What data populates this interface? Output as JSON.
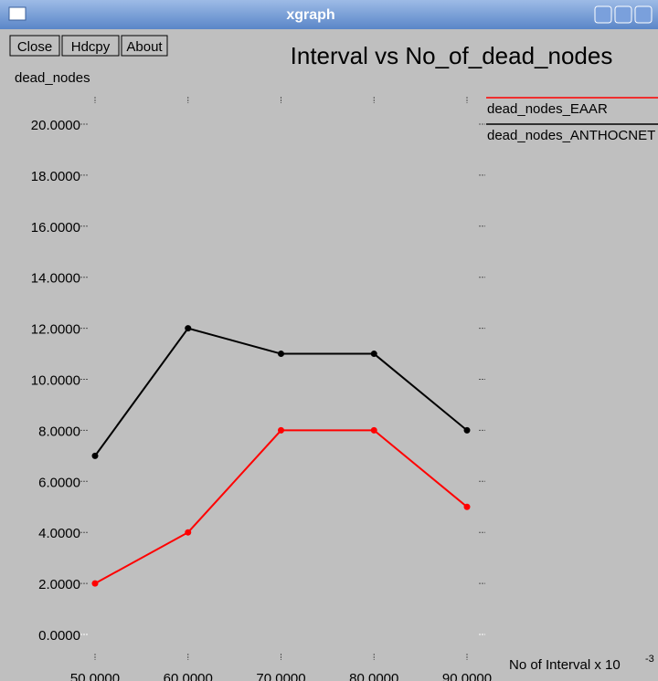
{
  "window": {
    "title": "xgraph",
    "buttons": [
      "Close",
      "Hdcpy",
      "About"
    ]
  },
  "chart_data": {
    "type": "line",
    "title": "Interval vs No_of_dead_nodes",
    "y_label": "dead_nodes",
    "x_label": "No  of  Interval x 10",
    "x_label_exponent": "-3",
    "x": [
      50,
      60,
      70,
      80,
      90
    ],
    "series": [
      {
        "name": "dead_nodes_EAAR",
        "color": "#ff0000",
        "values": [
          2,
          4,
          8,
          8,
          5
        ]
      },
      {
        "name": "dead_nodes_ANTHOCNET",
        "color": "#000000",
        "values": [
          7,
          12,
          11,
          11,
          8
        ]
      }
    ],
    "xlim": [
      50,
      90
    ],
    "xticks": [
      {
        "value": 50,
        "label": "50.0000"
      },
      {
        "value": 60,
        "label": "60.0000"
      },
      {
        "value": 70,
        "label": "70.0000"
      },
      {
        "value": 80,
        "label": "80.0000"
      },
      {
        "value": 90,
        "label": "90.0000"
      }
    ],
    "ylim": [
      0,
      20
    ],
    "yticks": [
      {
        "value": 0,
        "label": "0.0000"
      },
      {
        "value": 2,
        "label": "2.0000"
      },
      {
        "value": 4,
        "label": "4.0000"
      },
      {
        "value": 6,
        "label": "6.0000"
      },
      {
        "value": 8,
        "label": "8.0000"
      },
      {
        "value": 10,
        "label": "10.0000"
      },
      {
        "value": 12,
        "label": "12.0000"
      },
      {
        "value": 14,
        "label": "14.0000"
      },
      {
        "value": 16,
        "label": "16.0000"
      },
      {
        "value": 18,
        "label": "18.0000"
      },
      {
        "value": 20,
        "label": "20.0000"
      }
    ],
    "grid": false,
    "legend": "top-right"
  }
}
